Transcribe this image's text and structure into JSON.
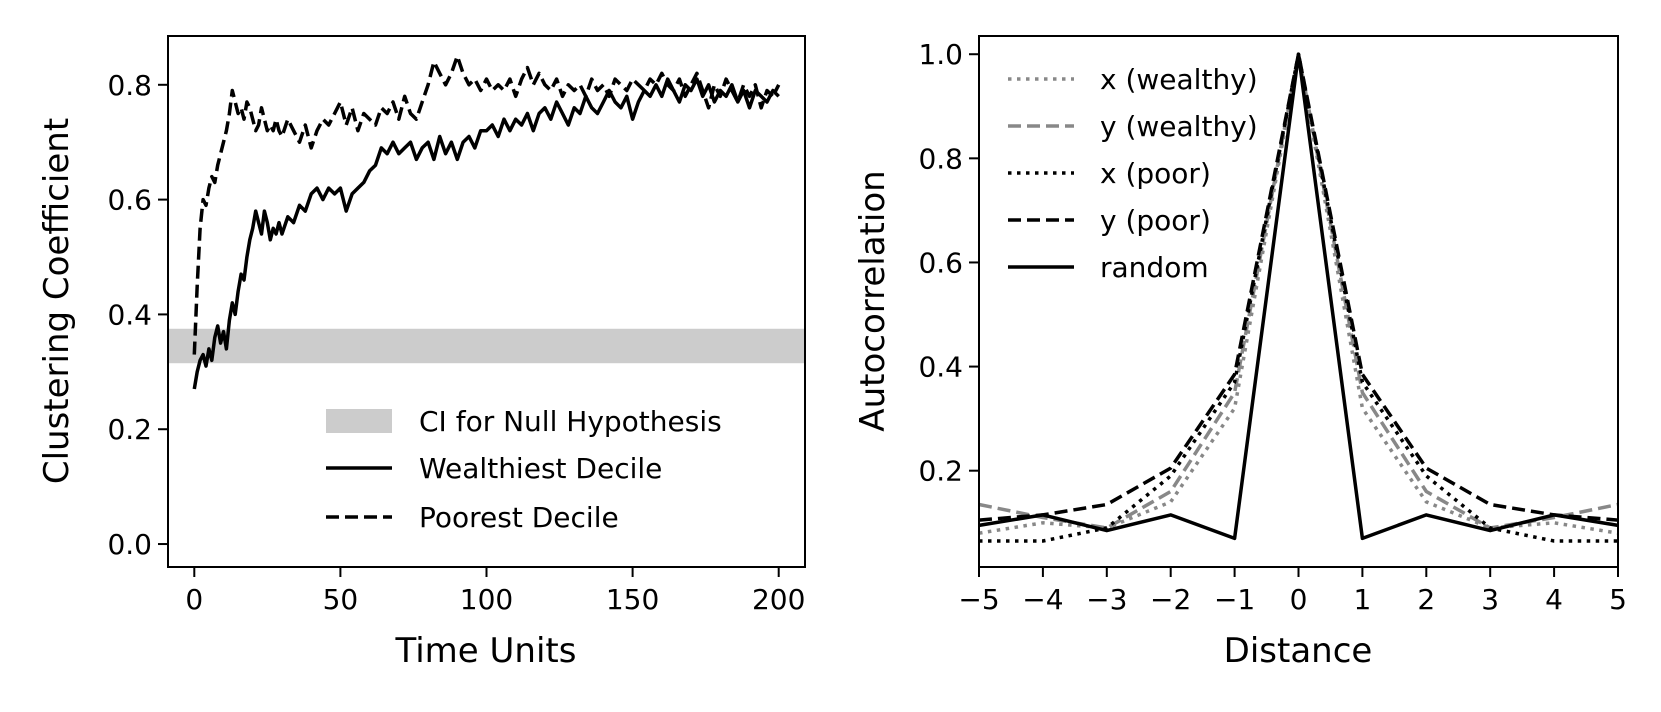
{
  "chart_data": [
    {
      "type": "line",
      "xlabel": "Time Units",
      "ylabel": "Clustering Coefficient",
      "xlim": [
        -9,
        209
      ],
      "ylim": [
        -0.04,
        0.885
      ],
      "xticks": [
        0,
        50,
        100,
        150,
        200
      ],
      "xtick_labels": [
        "0",
        "50",
        "100",
        "150",
        "200"
      ],
      "yticks": [
        0.0,
        0.2,
        0.4,
        0.6,
        0.8
      ],
      "ytick_labels": [
        "0.0",
        "0.2",
        "0.4",
        "0.6",
        "0.8"
      ],
      "band": {
        "name": "CI for Null Hypothesis",
        "y0": 0.315,
        "y1": 0.375,
        "color": "#cccccc"
      },
      "series": [
        {
          "name": "Wealthiest Decile",
          "style": "solid",
          "color": "#000000",
          "x": [
            0,
            1,
            2,
            3,
            4,
            5,
            6,
            7,
            8,
            9,
            10,
            11,
            12,
            13,
            14,
            15,
            16,
            17,
            18,
            19,
            20,
            21,
            22,
            23,
            24,
            25,
            26,
            27,
            28,
            29,
            30,
            32,
            34,
            36,
            38,
            40,
            42,
            44,
            46,
            48,
            50,
            52,
            54,
            56,
            58,
            60,
            62,
            64,
            66,
            68,
            70,
            72,
            74,
            76,
            78,
            80,
            82,
            84,
            86,
            88,
            90,
            92,
            94,
            96,
            98,
            100,
            102,
            104,
            106,
            108,
            110,
            112,
            114,
            116,
            118,
            120,
            122,
            124,
            126,
            128,
            130,
            132,
            134,
            136,
            138,
            140,
            142,
            144,
            146,
            148,
            150,
            152,
            154,
            156,
            158,
            160,
            162,
            164,
            166,
            168,
            170,
            172,
            174,
            176,
            178,
            180,
            182,
            184,
            186,
            188,
            190,
            192,
            194,
            196,
            198,
            200
          ],
          "values": [
            0.27,
            0.3,
            0.32,
            0.33,
            0.31,
            0.34,
            0.32,
            0.36,
            0.38,
            0.35,
            0.37,
            0.34,
            0.39,
            0.42,
            0.4,
            0.44,
            0.47,
            0.46,
            0.5,
            0.53,
            0.55,
            0.58,
            0.56,
            0.54,
            0.58,
            0.56,
            0.53,
            0.55,
            0.54,
            0.56,
            0.54,
            0.57,
            0.56,
            0.59,
            0.58,
            0.61,
            0.62,
            0.6,
            0.62,
            0.61,
            0.62,
            0.58,
            0.61,
            0.62,
            0.63,
            0.65,
            0.66,
            0.69,
            0.68,
            0.7,
            0.68,
            0.69,
            0.7,
            0.67,
            0.69,
            0.7,
            0.67,
            0.71,
            0.68,
            0.7,
            0.67,
            0.7,
            0.71,
            0.69,
            0.72,
            0.72,
            0.73,
            0.71,
            0.74,
            0.72,
            0.74,
            0.73,
            0.75,
            0.72,
            0.75,
            0.76,
            0.74,
            0.77,
            0.75,
            0.73,
            0.76,
            0.75,
            0.78,
            0.76,
            0.75,
            0.77,
            0.79,
            0.77,
            0.76,
            0.78,
            0.74,
            0.77,
            0.79,
            0.78,
            0.8,
            0.78,
            0.81,
            0.79,
            0.77,
            0.8,
            0.79,
            0.81,
            0.78,
            0.8,
            0.77,
            0.79,
            0.78,
            0.8,
            0.77,
            0.79,
            0.76,
            0.79,
            0.78,
            0.77,
            0.79,
            0.78
          ]
        },
        {
          "name": "Poorest Decile",
          "style": "dashed",
          "color": "#000000",
          "x": [
            0,
            1,
            2,
            3,
            4,
            5,
            6,
            7,
            8,
            9,
            10,
            11,
            12,
            13,
            14,
            15,
            16,
            17,
            18,
            19,
            20,
            21,
            22,
            23,
            24,
            25,
            26,
            27,
            28,
            29,
            30,
            32,
            34,
            36,
            38,
            40,
            42,
            44,
            46,
            48,
            50,
            52,
            54,
            56,
            58,
            60,
            62,
            64,
            66,
            68,
            70,
            72,
            74,
            76,
            78,
            80,
            82,
            84,
            86,
            88,
            90,
            92,
            94,
            96,
            98,
            100,
            102,
            104,
            106,
            108,
            110,
            112,
            114,
            116,
            118,
            120,
            122,
            124,
            126,
            128,
            130,
            132,
            134,
            136,
            138,
            140,
            142,
            144,
            146,
            148,
            150,
            152,
            154,
            156,
            158,
            160,
            162,
            164,
            166,
            168,
            170,
            172,
            174,
            176,
            178,
            180,
            182,
            184,
            186,
            188,
            190,
            192,
            194,
            196,
            198,
            200
          ],
          "values": [
            0.33,
            0.45,
            0.55,
            0.6,
            0.59,
            0.62,
            0.64,
            0.63,
            0.66,
            0.68,
            0.7,
            0.72,
            0.75,
            0.79,
            0.77,
            0.75,
            0.76,
            0.74,
            0.77,
            0.76,
            0.74,
            0.72,
            0.73,
            0.76,
            0.74,
            0.72,
            0.73,
            0.72,
            0.74,
            0.72,
            0.71,
            0.74,
            0.72,
            0.7,
            0.73,
            0.69,
            0.72,
            0.74,
            0.73,
            0.75,
            0.77,
            0.73,
            0.76,
            0.72,
            0.75,
            0.74,
            0.73,
            0.76,
            0.75,
            0.77,
            0.74,
            0.78,
            0.75,
            0.74,
            0.77,
            0.8,
            0.84,
            0.82,
            0.8,
            0.82,
            0.85,
            0.82,
            0.8,
            0.81,
            0.79,
            0.81,
            0.79,
            0.8,
            0.79,
            0.81,
            0.78,
            0.81,
            0.83,
            0.8,
            0.82,
            0.8,
            0.79,
            0.81,
            0.78,
            0.8,
            0.79,
            0.8,
            0.78,
            0.81,
            0.79,
            0.8,
            0.78,
            0.81,
            0.8,
            0.79,
            0.81,
            0.8,
            0.79,
            0.81,
            0.8,
            0.82,
            0.8,
            0.79,
            0.81,
            0.78,
            0.8,
            0.82,
            0.79,
            0.76,
            0.8,
            0.78,
            0.81,
            0.79,
            0.77,
            0.8,
            0.78,
            0.8,
            0.76,
            0.79,
            0.78,
            0.8
          ]
        }
      ],
      "legend": {
        "placement": "lower-right",
        "entries": [
          "CI for Null Hypothesis",
          "Wealthiest Decile",
          "Poorest Decile"
        ]
      }
    },
    {
      "type": "line",
      "xlabel": "Distance",
      "ylabel": "Autocorrelation",
      "xlim": [
        -5,
        5
      ],
      "ylim": [
        0.015,
        1.035
      ],
      "xticks": [
        -5,
        -4,
        -3,
        -2,
        -1,
        0,
        1,
        2,
        3,
        4,
        5
      ],
      "xtick_labels": [
        "−5",
        "−4",
        "−3",
        "−2",
        "−1",
        "0",
        "1",
        "2",
        "3",
        "4",
        "5"
      ],
      "yticks": [
        0.2,
        0.4,
        0.6,
        0.8,
        1.0
      ],
      "ytick_labels": [
        "0.2",
        "0.4",
        "0.6",
        "0.8",
        "1.0"
      ],
      "x": [
        -5,
        -4,
        -3,
        -2,
        -1,
        0,
        1,
        2,
        3,
        4,
        5
      ],
      "series": [
        {
          "name": "x (wealthy)",
          "style": "dotted",
          "color": "#888888",
          "values": [
            0.08,
            0.1,
            0.09,
            0.14,
            0.32,
            1.0,
            0.32,
            0.14,
            0.09,
            0.1,
            0.08
          ]
        },
        {
          "name": "y (wealthy)",
          "style": "dashed",
          "color": "#888888",
          "values": [
            0.135,
            0.11,
            0.09,
            0.16,
            0.35,
            1.0,
            0.35,
            0.16,
            0.09,
            0.11,
            0.135
          ]
        },
        {
          "name": "x (poor)",
          "style": "dotted",
          "color": "#000000",
          "values": [
            0.065,
            0.065,
            0.09,
            0.19,
            0.37,
            1.0,
            0.37,
            0.19,
            0.09,
            0.065,
            0.065
          ]
        },
        {
          "name": "y (poor)",
          "style": "dashed",
          "color": "#000000",
          "values": [
            0.105,
            0.115,
            0.135,
            0.205,
            0.385,
            1.0,
            0.385,
            0.205,
            0.135,
            0.115,
            0.105
          ]
        },
        {
          "name": "random",
          "style": "solid",
          "color": "#000000",
          "values": [
            0.095,
            0.115,
            0.085,
            0.115,
            0.07,
            1.0,
            0.07,
            0.115,
            0.085,
            0.115,
            0.095
          ]
        }
      ],
      "legend": {
        "placement": "upper-left",
        "entries": [
          "x (wealthy)",
          "y (wealthy)",
          "x (poor)",
          "y (poor)",
          "random"
        ]
      }
    }
  ]
}
